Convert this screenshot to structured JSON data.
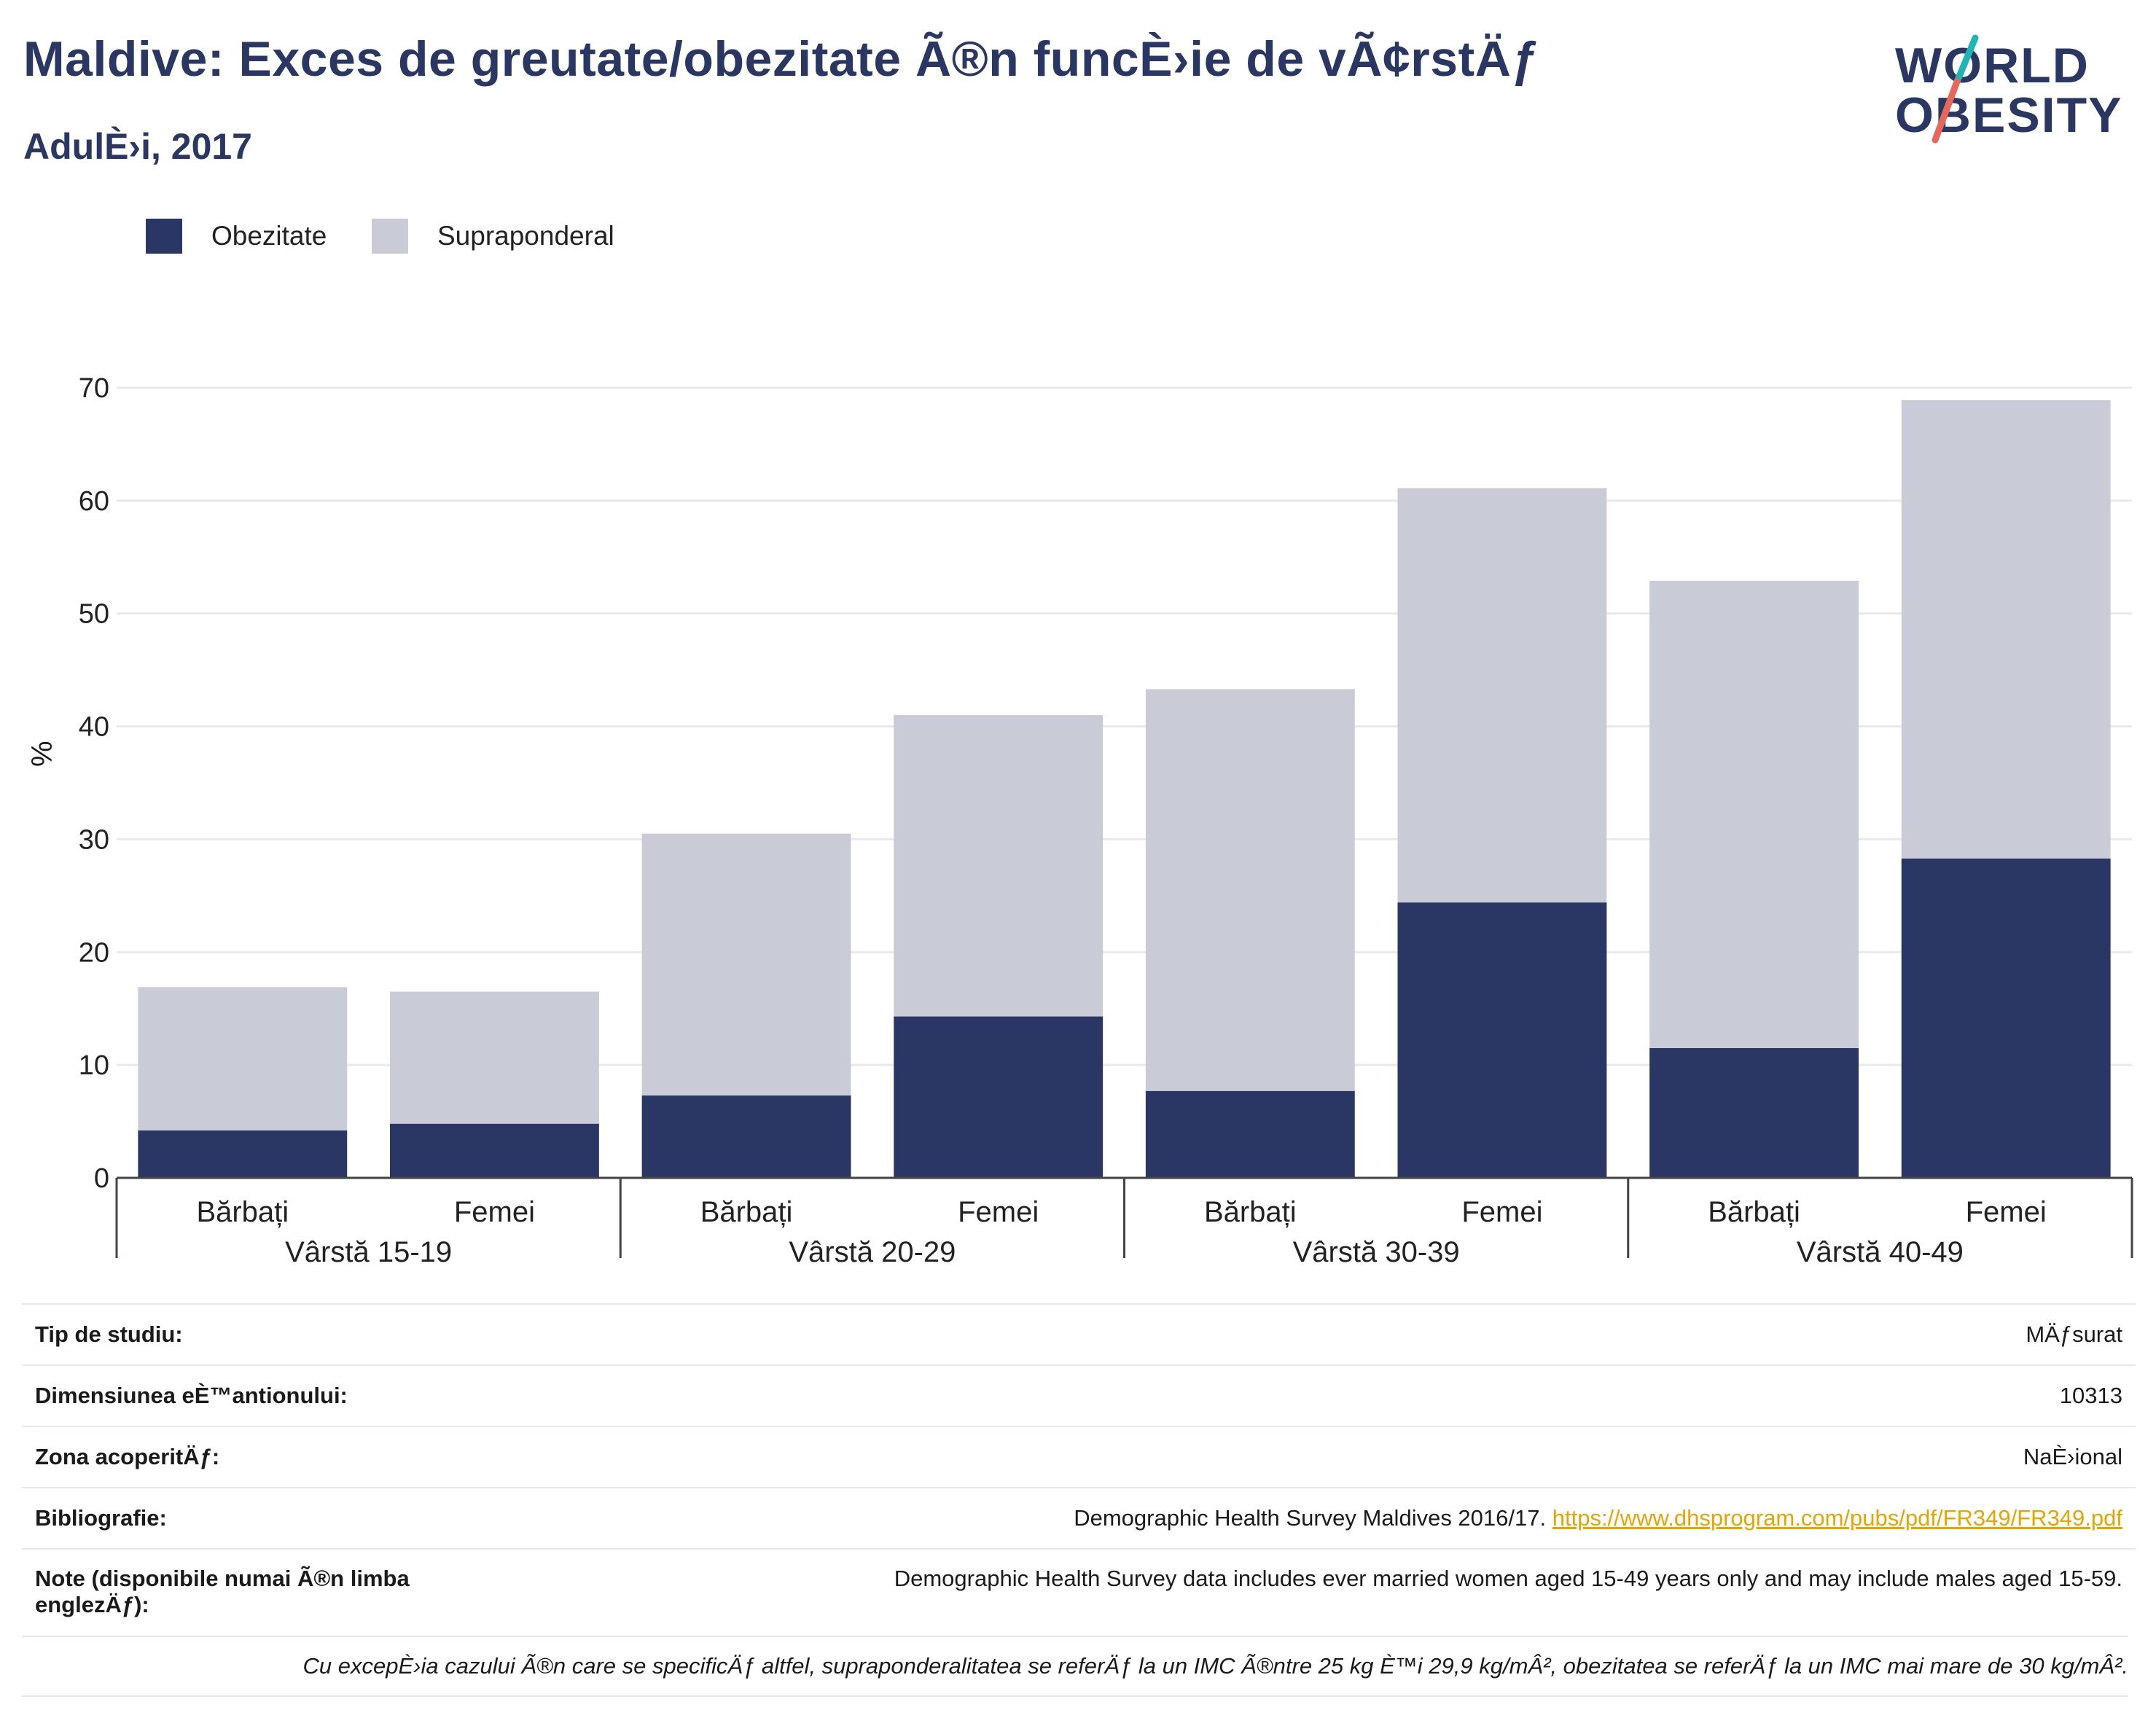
{
  "header": {
    "title": "Maldive: Exces de greutate/obezitate Ã®n funcÈ›ie de vÃ¢rstÄƒ",
    "subtitle": "AdulÈ›i, 2017"
  },
  "logo": {
    "line1": "WORLD",
    "line2": "OBESITY",
    "accent_colors": [
      "#1fb5b5",
      "#e8665a"
    ]
  },
  "legend": [
    {
      "label": "Obezitate",
      "color": "#2a3663"
    },
    {
      "label": "Supraponderal",
      "color": "#c9cbd6"
    }
  ],
  "chart_data": {
    "type": "bar",
    "stacked": true,
    "categories": [
      "Bărbați",
      "Femei",
      "Bărbați",
      "Femei",
      "Bărbați",
      "Femei",
      "Bărbați",
      "Femei"
    ],
    "groups": [
      "Vârstă 15-19",
      "Vârstă 20-29",
      "Vârstă 30-39",
      "Vârstă 40-49"
    ],
    "series": [
      {
        "name": "Obezitate",
        "color": "#2a3663",
        "values": [
          4.2,
          4.8,
          7.3,
          14.3,
          7.7,
          24.4,
          11.5,
          28.3
        ]
      },
      {
        "name": "Supraponderal",
        "color": "#c9cbd6",
        "values": [
          12.7,
          11.7,
          23.2,
          26.7,
          35.6,
          36.7,
          41.4,
          40.6
        ]
      }
    ],
    "ylabel": "%",
    "ylim": [
      0,
      70
    ],
    "yticks": [
      0,
      10,
      20,
      30,
      40,
      50,
      60,
      70
    ],
    "grid": true
  },
  "info": {
    "rows": [
      {
        "key": "Tip de studiu:",
        "value": "MÄƒsurat"
      },
      {
        "key": "Dimensiunea eÈ™antionului:",
        "value": "10313"
      },
      {
        "key": "Zona acoperitÄƒ:",
        "value": "NaÈ›ional"
      },
      {
        "key": "Bibliografie:",
        "value": "Demographic Health Survey Maldives 2016/17.",
        "link": "https://www.dhsprogram.com/pubs/pdf/FR349/FR349.pdf"
      },
      {
        "key": "Note (disponibile numai Ã®n limba englezÄƒ):",
        "value": "Demographic Health Survey data includes ever married women aged 15-49 years only and may include males aged 15-59."
      }
    ],
    "footnote": "Cu excepÈ›ia cazului Ã®n care se specificÄƒ altfel, supraponderalitatea se referÄƒ la un IMC Ã®ntre 25 kg È™i 29,9 kg/mÂ², obezitatea se referÄƒ la un IMC mai mare de 30 kg/mÂ²."
  }
}
